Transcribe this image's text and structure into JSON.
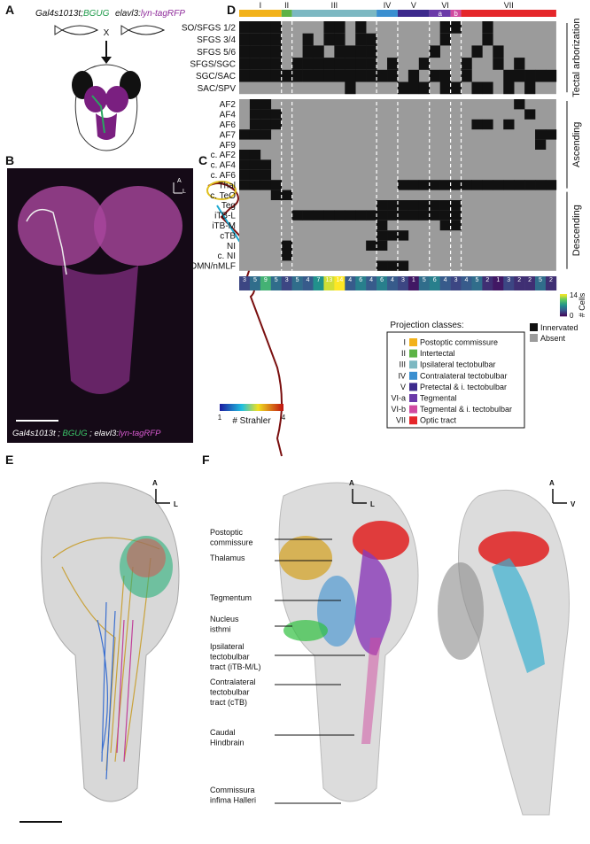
{
  "panel_labels": [
    "A",
    "B",
    "C",
    "D",
    "E",
    "F"
  ],
  "panel_a": {
    "line1": "Gal4s1013t",
    "line1_sep": ";",
    "line1_reporter": "BGUG",
    "line2": "elavl3:",
    "line2_reporter": "lyn-tagRFP",
    "cross": "X"
  },
  "panel_b": {
    "axis_a": "A",
    "axis_l": "L",
    "caption": [
      "Gal4s1013t",
      " ; ",
      "BGUG",
      " ; elavl3:",
      "lyn-tagRFP"
    ]
  },
  "panel_c": {
    "scale_min": 1,
    "scale_max": 4,
    "scale_title": "# Strahler"
  },
  "heatmap": {
    "class_bar": [
      {
        "label": "I",
        "color": "#f2b21a",
        "cols": [
          0,
          3
        ]
      },
      {
        "label": "II",
        "color": "#5db346",
        "cols": [
          4,
          4
        ]
      },
      {
        "label": "III",
        "color": "#7cb8c2",
        "cols": [
          5,
          12
        ]
      },
      {
        "label": "IV",
        "color": "#3a8fd0",
        "cols": [
          13,
          14
        ]
      },
      {
        "label": "V",
        "color": "#3c2a8c",
        "cols": [
          15,
          17
        ]
      },
      {
        "label": "a",
        "color": "#6a38a8",
        "cols": [
          18,
          19
        ]
      },
      {
        "label": "b",
        "color": "#d04aa0",
        "cols": [
          20,
          20
        ]
      },
      {
        "label": "VII",
        "color": "#e5262a",
        "cols": [
          21,
          29
        ]
      }
    ],
    "vi_label": "VI",
    "rows": [
      "SO/SFGS 1/2",
      "SFGS 3/4",
      "SFGS 5/6",
      "SFGS/SGC",
      "SGC/SAC",
      "SAC/SPV",
      "AF2",
      "AF4",
      "AF6",
      "AF7",
      "AF9",
      "c. AF2",
      "c. AF4",
      "c. AF6",
      "Thal",
      "c. TeO",
      "Teg",
      "iTB-L",
      "iTB-M",
      "cTB",
      "NI",
      "c. NI",
      "OMN/nMLF"
    ],
    "innervated": [
      [
        0,
        1,
        2,
        3,
        8,
        9,
        11,
        19,
        20,
        23
      ],
      [
        0,
        1,
        2,
        3,
        6,
        8,
        9,
        11,
        12,
        19,
        23
      ],
      [
        0,
        1,
        2,
        3,
        6,
        7,
        9,
        10,
        11,
        12,
        18,
        22,
        24
      ],
      [
        0,
        1,
        2,
        3,
        5,
        6,
        7,
        8,
        9,
        10,
        11,
        12,
        14,
        17,
        21,
        24,
        26
      ],
      [
        0,
        1,
        2,
        3,
        4,
        5,
        6,
        7,
        8,
        9,
        10,
        11,
        12,
        13,
        14,
        16,
        18,
        19,
        21,
        25,
        26,
        27,
        28,
        29
      ],
      [
        10,
        15,
        16,
        17,
        19,
        20,
        22,
        23,
        25,
        27
      ],
      [
        1,
        2,
        26
      ],
      [
        1,
        2,
        3,
        27
      ],
      [
        1,
        2,
        3,
        22,
        23,
        25
      ],
      [
        0,
        1,
        2,
        28,
        29
      ],
      [
        28
      ],
      [
        0,
        1
      ],
      [
        0,
        1,
        2
      ],
      [
        0,
        1,
        2
      ],
      [
        0,
        1,
        2,
        3,
        15,
        16,
        17,
        18,
        19,
        20,
        21,
        22,
        23,
        24,
        25,
        26,
        27,
        28,
        29
      ],
      [
        3,
        4
      ],
      [
        13,
        14,
        15,
        16,
        17,
        18,
        19,
        20
      ],
      [
        5,
        6,
        7,
        8,
        9,
        10,
        11,
        12,
        13,
        14,
        15,
        16,
        17,
        18,
        19,
        20
      ],
      [
        13,
        19,
        20
      ],
      [
        13,
        14,
        15
      ],
      [
        4,
        12,
        13
      ],
      [
        4
      ],
      [
        13,
        14,
        15
      ]
    ],
    "cell_counts": [
      3,
      5,
      9,
      5,
      3,
      5,
      4,
      7,
      13,
      14,
      4,
      6,
      4,
      6,
      4,
      3,
      1,
      5,
      6,
      4,
      3,
      4,
      5,
      2,
      1,
      3,
      2,
      2,
      5,
      2
    ],
    "groups": [
      {
        "label": "Tectal arborization",
        "rows": [
          0,
          5
        ]
      },
      {
        "label": "Ascending",
        "rows": [
          6,
          14
        ]
      },
      {
        "label": "Descending",
        "rows": [
          15,
          22
        ]
      }
    ],
    "colorbar": {
      "min": 0,
      "max": 14,
      "title": "# Cells"
    },
    "state_legend": [
      {
        "label": "Innervated",
        "color": "#111111"
      },
      {
        "label": "Absent",
        "color": "#9b9b9b"
      }
    ]
  },
  "projection_legend": {
    "title": "Projection classes:",
    "entries": [
      {
        "code": "I",
        "name": "Postoptic commissure",
        "color": "#f2b21a"
      },
      {
        "code": "II",
        "name": "Intertectal",
        "color": "#5db346"
      },
      {
        "code": "III",
        "name": "Ipsilateral tectobulbar",
        "color": "#7cb8c2"
      },
      {
        "code": "IV",
        "name": "Contralateral tectobulbar",
        "color": "#3a8fd0"
      },
      {
        "code": "V",
        "name": "Pretectal & i. tectobulbar",
        "color": "#3c2a8c"
      },
      {
        "code": "VI-a",
        "name": "Tegmental",
        "color": "#6a38a8"
      },
      {
        "code": "VI-b",
        "name": "Tegmental & i. tectobulbar",
        "color": "#d04aa0"
      },
      {
        "code": "VII",
        "name": "Optic tract",
        "color": "#e5262a"
      }
    ]
  },
  "panel_e": {
    "axis_a": "A",
    "axis_l": "L"
  },
  "panel_f": {
    "axis_a": "A",
    "axis_l": "L",
    "axis_a2": "A",
    "axis_v": "V",
    "labels": [
      [
        "Postoptic",
        "commissure"
      ],
      [
        "Thalamus"
      ],
      [
        "Tegmentum"
      ],
      [
        "Nucleus",
        "isthmi"
      ],
      [
        "Ipsilateral",
        "tectobulbar",
        "tract (iTB-M/L)"
      ],
      [
        "Contralateral",
        "tectobulbar",
        "tract (cTB)"
      ],
      [
        "Caudal",
        "Hindbrain"
      ],
      [
        "Commissura",
        "infima Halleri"
      ]
    ]
  }
}
